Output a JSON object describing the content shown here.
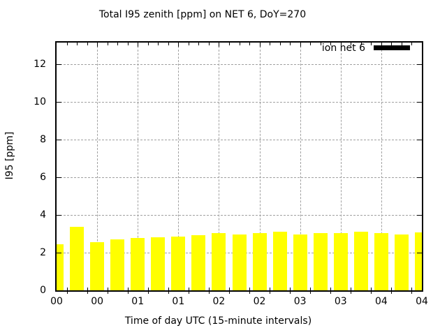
{
  "title": "Total I95 zenith [ppm] on NET 6, DoY=270",
  "legend": {
    "label": "ion net 6",
    "swatch_color": "#000000",
    "position": "top-right-inside"
  },
  "axes": {
    "ylabel": "I95 [ppm]",
    "xlabel": "Time of day UTC (15-minute intervals)",
    "ytick_labels": [
      "0",
      "2",
      "4",
      "6",
      "8",
      "10",
      "12"
    ],
    "xtick_labels": [
      "00",
      "00",
      "01",
      "01",
      "02",
      "02",
      "03",
      "03",
      "04",
      "04"
    ]
  },
  "colors": {
    "bar_fill": "#ffff00",
    "grid": "#a0a0a0",
    "border": "#000000",
    "background": "#ffffff",
    "text": "#000000"
  },
  "chart_data": {
    "type": "bar",
    "title": "Total I95 zenith [ppm] on NET 6, DoY=270",
    "xlabel": "Time of day UTC (15-minute intervals)",
    "ylabel": "I95 [ppm]",
    "series": [
      {
        "name": "ion net 6",
        "x": [
          "00:00",
          "00:15",
          "00:30",
          "00:45",
          "01:00",
          "01:15",
          "01:30",
          "01:45",
          "02:00",
          "02:15",
          "02:30",
          "02:45",
          "03:00",
          "03:15",
          "03:30",
          "03:45",
          "04:00",
          "04:15",
          "04:30"
        ],
        "values": [
          2.43,
          3.36,
          2.54,
          2.7,
          2.77,
          2.8,
          2.85,
          2.94,
          3.04,
          2.97,
          3.02,
          3.1,
          2.98,
          3.05,
          3.04,
          3.1,
          3.02,
          2.96,
          3.07
        ]
      }
    ],
    "bar_color": "#ffff00",
    "ylim": [
      0,
      13.15
    ],
    "ytick_values": [
      0,
      2,
      4,
      6,
      8,
      10,
      12
    ],
    "xtick_minutes": [
      0,
      30,
      60,
      90,
      120,
      150,
      180,
      210,
      240,
      270
    ],
    "x_range_minutes": [
      0,
      270
    ],
    "interval_minutes": 15,
    "grid": true,
    "grid_style": "dashed",
    "legend_position": "top-right",
    "edge_bars_clipped": true
  }
}
